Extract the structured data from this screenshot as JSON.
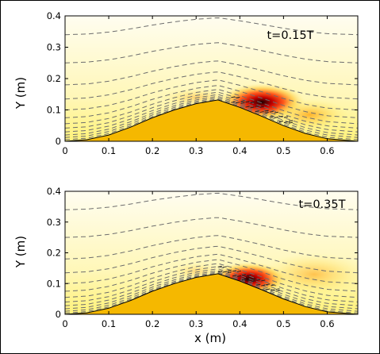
{
  "chart_data": [
    {
      "type": "heatmap",
      "annotation": "t=0.15T",
      "ylabel": "Y (m)",
      "xlabel": "",
      "xlim": [
        0,
        0.67
      ],
      "ylim": [
        0,
        0.4
      ],
      "xticks": [
        "0",
        "0.1",
        "0.2",
        "0.3",
        "0.4",
        "0.5",
        "0.6"
      ],
      "yticks": [
        "0",
        "0.1",
        "0.2",
        "0.3",
        "0.4"
      ],
      "bump": [
        [
          0,
          0
        ],
        [
          0.05,
          0.005
        ],
        [
          0.1,
          0.02
        ],
        [
          0.15,
          0.045
        ],
        [
          0.2,
          0.075
        ],
        [
          0.25,
          0.1
        ],
        [
          0.3,
          0.12
        ],
        [
          0.35,
          0.132
        ],
        [
          0.4,
          0.108
        ],
        [
          0.45,
          0.08
        ],
        [
          0.5,
          0.05
        ],
        [
          0.55,
          0.025
        ],
        [
          0.6,
          0.008
        ],
        [
          0.67,
          0.0
        ]
      ],
      "hotspots": [
        {
          "x": 0.45,
          "y": 0.125,
          "rx": 0.1,
          "ry": 0.06,
          "intensity": 1.0
        },
        {
          "x": 0.56,
          "y": 0.085,
          "rx": 0.09,
          "ry": 0.05,
          "intensity": 0.45
        },
        {
          "x": 0.3,
          "y": 0.14,
          "rx": 0.08,
          "ry": 0.03,
          "intensity": 0.25
        }
      ],
      "streamline_levels": [
        0.005,
        0.012,
        0.02,
        0.03,
        0.042,
        0.056,
        0.075,
        0.1,
        0.135,
        0.18,
        0.25,
        0.34
      ]
    },
    {
      "type": "heatmap",
      "annotation": "t=0.35T",
      "ylabel": "Y (m)",
      "xlabel": "x (m)",
      "xlim": [
        0,
        0.67
      ],
      "ylim": [
        0,
        0.4
      ],
      "xticks": [
        "0",
        "0.1",
        "0.2",
        "0.3",
        "0.4",
        "0.5",
        "0.6"
      ],
      "yticks": [
        "0",
        "0.1",
        "0.2",
        "0.3",
        "0.4"
      ],
      "bump": [
        [
          0,
          0
        ],
        [
          0.05,
          0.005
        ],
        [
          0.1,
          0.02
        ],
        [
          0.15,
          0.045
        ],
        [
          0.2,
          0.075
        ],
        [
          0.25,
          0.1
        ],
        [
          0.3,
          0.12
        ],
        [
          0.35,
          0.132
        ],
        [
          0.4,
          0.108
        ],
        [
          0.45,
          0.08
        ],
        [
          0.5,
          0.05
        ],
        [
          0.55,
          0.025
        ],
        [
          0.6,
          0.008
        ],
        [
          0.67,
          0.0
        ]
      ],
      "hotspots": [
        {
          "x": 0.42,
          "y": 0.115,
          "rx": 0.09,
          "ry": 0.055,
          "intensity": 1.0
        },
        {
          "x": 0.57,
          "y": 0.13,
          "rx": 0.12,
          "ry": 0.07,
          "intensity": 0.35
        },
        {
          "x": 0.3,
          "y": 0.14,
          "rx": 0.06,
          "ry": 0.03,
          "intensity": 0.2
        }
      ],
      "streamline_levels": [
        0.004,
        0.01,
        0.018,
        0.028,
        0.04,
        0.055,
        0.075,
        0.1,
        0.135,
        0.18,
        0.25,
        0.34
      ]
    }
  ]
}
